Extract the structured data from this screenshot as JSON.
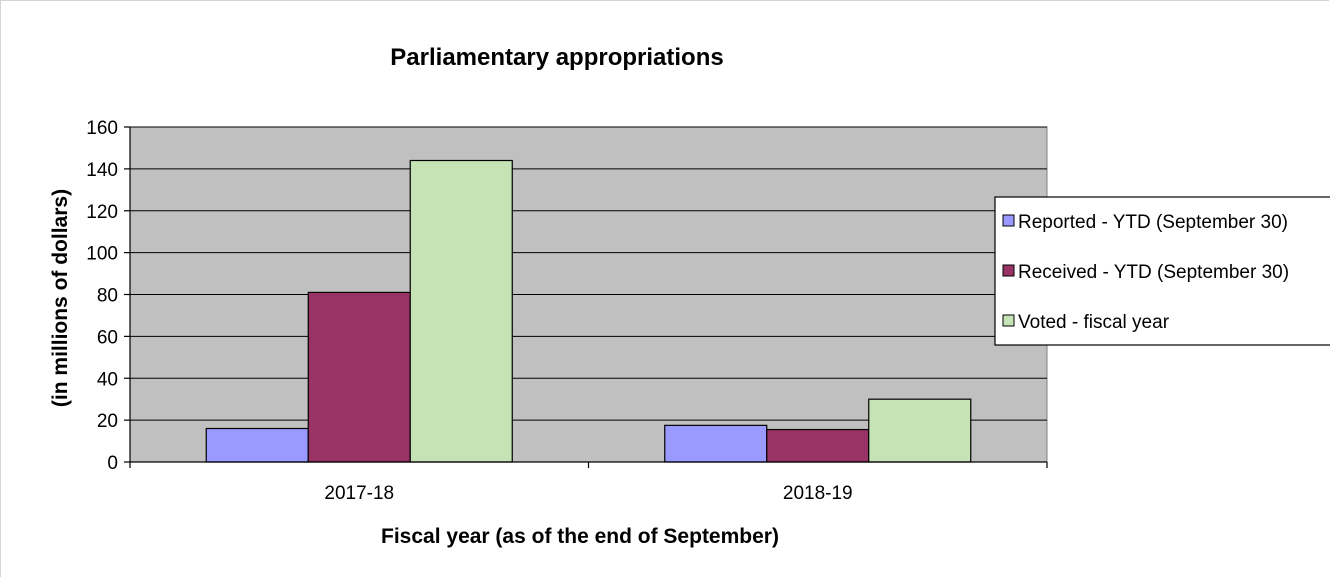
{
  "chart_data": {
    "type": "bar",
    "title": "Parliamentary appropriations",
    "xlabel": "Fiscal year (as of the end of September)",
    "ylabel": "(in millions of dollars)",
    "categories": [
      "2017-18",
      "2018-19"
    ],
    "ylim": [
      0,
      160
    ],
    "yticks": [
      0,
      20,
      40,
      60,
      80,
      100,
      120,
      140,
      160
    ],
    "grid": true,
    "legend_position": "right",
    "series": [
      {
        "name": "Reported - YTD (September 30)",
        "values": [
          16,
          17.5
        ],
        "color": "#9999ff"
      },
      {
        "name": "Received - YTD (September 30)",
        "values": [
          81,
          15.5
        ],
        "color": "#993366"
      },
      {
        "name": "Voted - fiscal year",
        "values": [
          144,
          30
        ],
        "color": "#c6e3b5"
      }
    ],
    "plot_background": "#c0c0c0"
  }
}
